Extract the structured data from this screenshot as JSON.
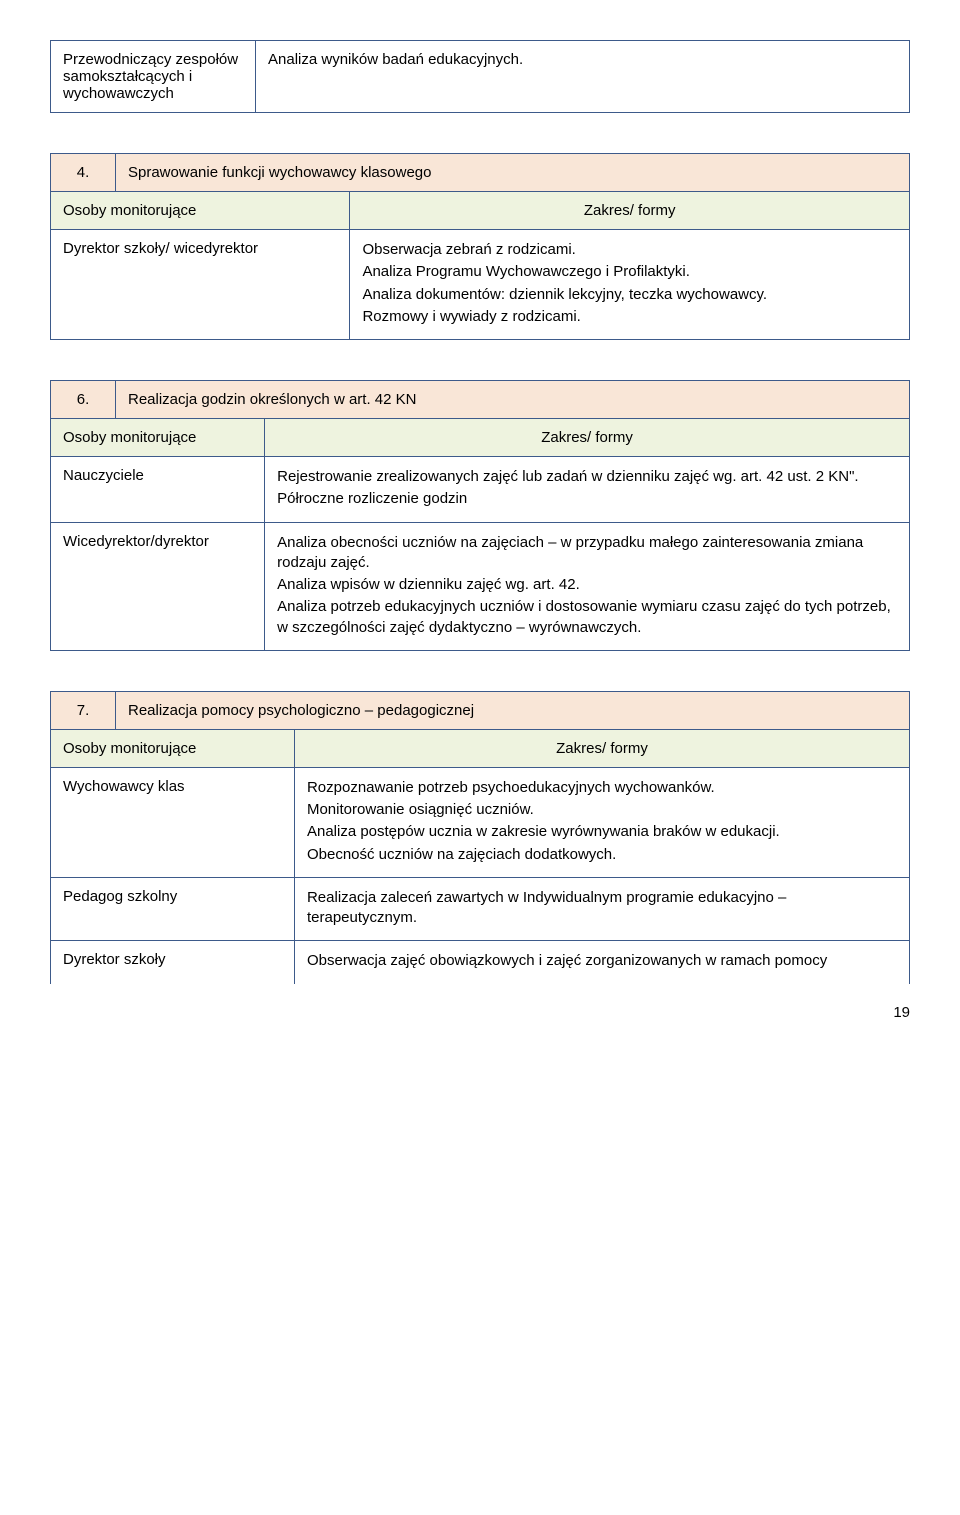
{
  "table1": {
    "left": "Przewodniczący zespołów samokształcących i wychowawczych",
    "right": "Analiza wyników badań edukacyjnych."
  },
  "table2": {
    "num": "4.",
    "title": "Sprawowanie funkcji wychowawcy klasowego",
    "subLeft": "Osoby monitorujące",
    "subRight": "Zakres/ formy",
    "row1Left": "Dyrektor szkoły/ wicedyrektor",
    "row1Right": [
      "Obserwacja zebrań z rodzicami.",
      "Analiza Programu Wychowawczego i Profilaktyki.",
      "Analiza dokumentów:  dziennik  lekcyjny, teczka wychowawcy.",
      "Rozmowy i wywiady z rodzicami."
    ]
  },
  "table3": {
    "num": "6.",
    "title": "Realizacja godzin określonych w art. 42 KN",
    "subLeft": "Osoby monitorujące",
    "subRight": "Zakres/ formy",
    "row1Left": "Nauczyciele",
    "row1Right": [
      "Rejestrowanie zrealizowanych zajęć lub zadań w dzienniku zajęć  wg. art. 42 ust. 2 KN\".",
      "Półroczne rozliczenie godzin"
    ],
    "row2Left": "Wicedyrektor/dyrektor",
    "row2Right": [
      "Analiza  obecności uczniów na zajęciach – w przypadku małego zainteresowania zmiana rodzaju zajęć.",
      "Analiza wpisów w dzienniku zajęć wg. art. 42.",
      "Analiza potrzeb edukacyjnych uczniów  i  dostosowanie wymiaru czasu  zajęć do tych potrzeb,  w szczególności zajęć dydaktyczno – wyrównawczych."
    ]
  },
  "table4": {
    "num": "7.",
    "title": "Realizacja pomocy psychologiczno – pedagogicznej",
    "subLeft": "Osoby monitorujące",
    "subRight": "Zakres/ formy",
    "row1Left": "Wychowawcy klas",
    "row1Right": [
      "Rozpoznawanie potrzeb psychoedukacyjnych wychowanków.",
      "Monitorowanie osiągnięć uczniów.",
      "Analiza postępów ucznia w zakresie wyrównywania braków w edukacji.",
      "Obecność uczniów na zajęciach dodatkowych."
    ],
    "row2Left": "Pedagog szkolny",
    "row2Right": [
      "Realizacja zaleceń zawartych w Indywidualnym programie edukacyjno – terapeutycznym."
    ],
    "row3Left": "Dyrektor szkoły",
    "row3Right": [
      "Obserwacja zajęć obowiązkowych i zajęć zorganizowanych w ramach pomocy"
    ]
  },
  "pageNumber": "19"
}
